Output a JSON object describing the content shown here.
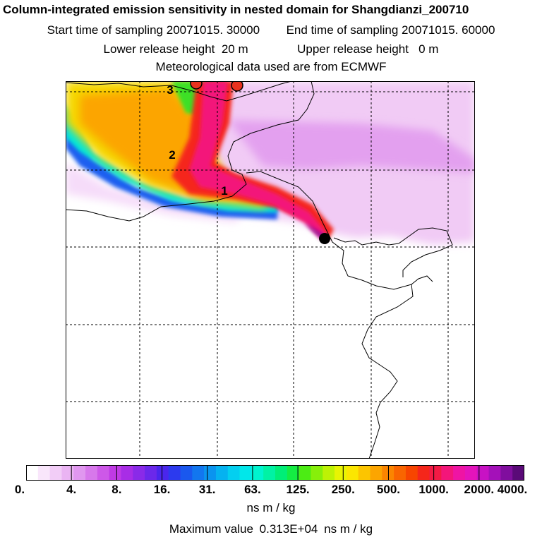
{
  "header": {
    "title": "Column-integrated emission sensitivity in nested domain for Shangdianzi_200710",
    "start_label": "Start time of sampling",
    "start_value": "20071015. 30000",
    "end_label": "End time of sampling",
    "end_value": "20071015. 60000",
    "lower_label": "Lower release height",
    "lower_value": "20 m",
    "upper_label": "Upper release height",
    "upper_value": "0 m",
    "met_text": "Meteorological data used are from ECMWF"
  },
  "map": {
    "plume_labels": [
      "1",
      "2",
      "3"
    ],
    "receptor": "Shangdianzi",
    "colors": {
      "receptor_dot": "#000000",
      "source_dots": "#e8321e",
      "coast": "#000000",
      "grid": "#000000"
    }
  },
  "legend": {
    "tick_labels": [
      "0.",
      "4.",
      "8.",
      "16.",
      "31.",
      "63.",
      "125.",
      "250.",
      "500.",
      "1000.",
      "2000.",
      "4000."
    ],
    "colors": [
      "#ffffff",
      "#f9e6fb",
      "#f2cdf7",
      "#eab4f3",
      "#e097ef",
      "#d778eb",
      "#cd58e8",
      "#c03ae5",
      "#a82de6",
      "#8a2ae8",
      "#6b28ea",
      "#4a26ec",
      "#2c3aee",
      "#1a58ee",
      "#1276ef",
      "#0a94ef",
      "#05b2f0",
      "#03cff0",
      "#01e7ea",
      "#00f4cf",
      "#00f2a4",
      "#00ee77",
      "#14ec43",
      "#4cec14",
      "#87ef0a",
      "#bdf205",
      "#e8f403",
      "#fbe601",
      "#fcc500",
      "#fca500",
      "#fb8500",
      "#f96500",
      "#f74500",
      "#f5261a",
      "#f31a45",
      "#f3167a",
      "#ef14a4",
      "#e414bb",
      "#c812c4",
      "#a411b9",
      "#800e9e",
      "#5a0a78"
    ],
    "unit": "ns m / kg",
    "max_label": "Maximum value",
    "max_value": "0.313E+04",
    "max_unit": "ns m / kg"
  }
}
